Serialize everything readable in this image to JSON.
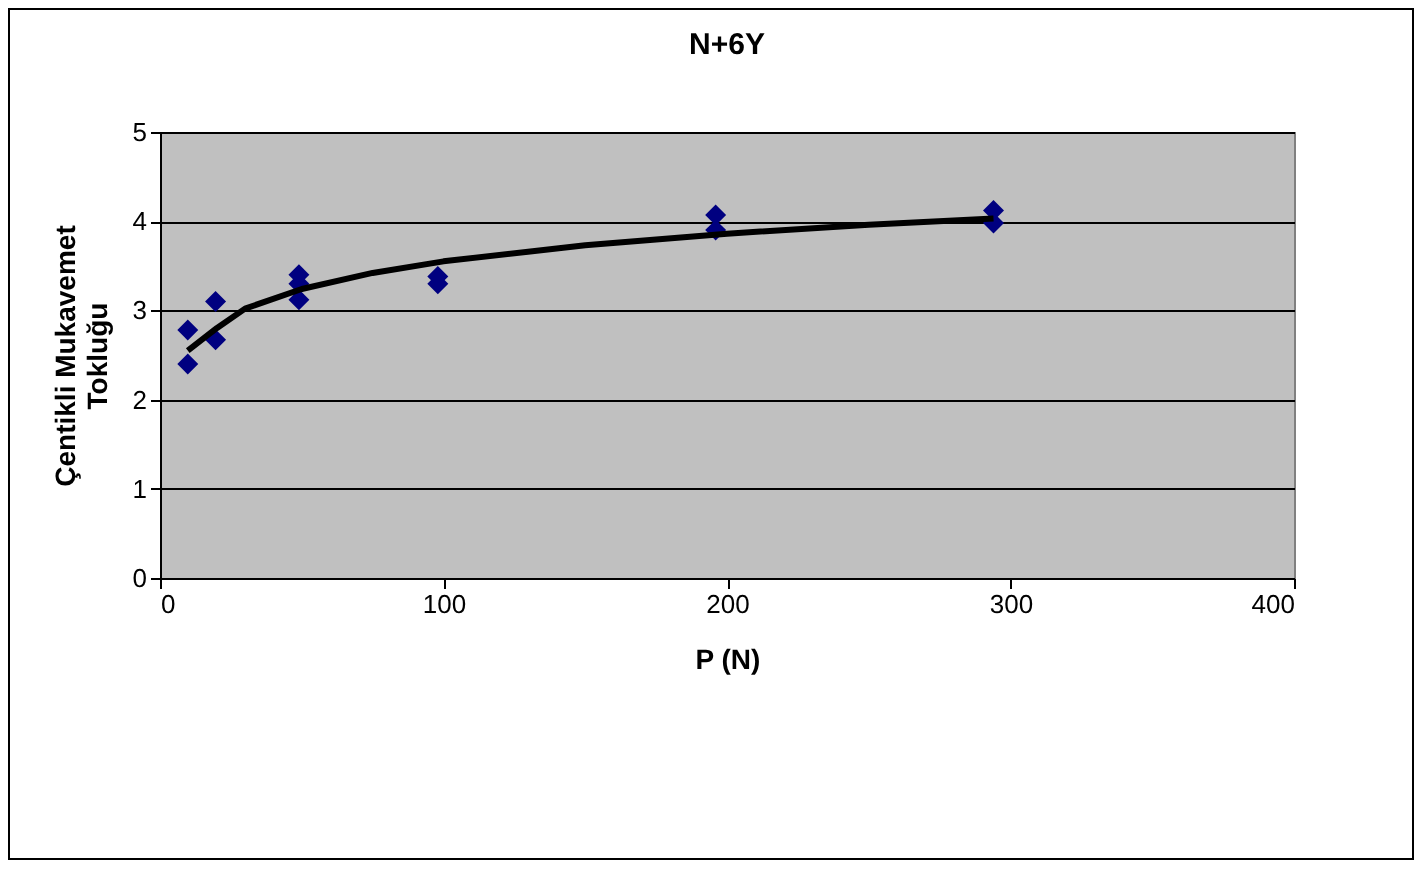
{
  "chart_data": {
    "type": "scatter",
    "title": "N+6Y",
    "xlabel": "P (N)",
    "ylabel": "Çentikli Mukavemet\nTokluğu",
    "xlim": [
      0,
      400
    ],
    "xticks": [
      0,
      100,
      200,
      300,
      400
    ],
    "ylim": [
      0,
      5
    ],
    "yticks": [
      0,
      1,
      2,
      3,
      4,
      5
    ],
    "grid": "y",
    "marker": "diamond",
    "series": [
      {
        "color": "#000080",
        "x": [
          9.8,
          9.8,
          19.6,
          19.6,
          49,
          49,
          49,
          98,
          98,
          196,
          196,
          294,
          294
        ],
        "values": [
          2.4,
          2.78,
          3.1,
          2.67,
          3.4,
          3.12,
          3.3,
          3.38,
          3.3,
          4.07,
          3.9,
          4.12,
          3.98
        ]
      },
      {
        "type": "line",
        "color": "#000000",
        "line_style": "solid",
        "marker": "none",
        "x": [
          9.8,
          20,
          30,
          50,
          75,
          100,
          150,
          200,
          250,
          294
        ],
        "values": [
          2.55,
          2.8,
          3.02,
          3.24,
          3.42,
          3.55,
          3.73,
          3.86,
          3.96,
          4.03
        ]
      }
    ]
  }
}
